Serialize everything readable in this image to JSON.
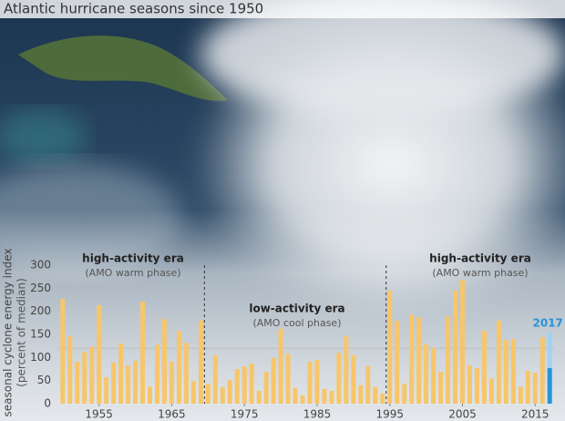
{
  "chart_data": {
    "type": "bar",
    "title": "Atlantic hurricane seasons since 1950",
    "y_label": "seasonal cyclone energy index",
    "y_sublabel": "(percent of median)",
    "x": [
      1950,
      1951,
      1952,
      1953,
      1954,
      1955,
      1956,
      1957,
      1958,
      1959,
      1960,
      1961,
      1962,
      1963,
      1964,
      1965,
      1966,
      1967,
      1968,
      1969,
      1970,
      1971,
      1972,
      1973,
      1974,
      1975,
      1976,
      1977,
      1978,
      1979,
      1980,
      1981,
      1982,
      1983,
      1984,
      1985,
      1986,
      1987,
      1988,
      1989,
      1990,
      1991,
      1992,
      1993,
      1994,
      1995,
      1996,
      1997,
      1998,
      1999,
      2000,
      2001,
      2002,
      2003,
      2004,
      2005,
      2006,
      2007,
      2008,
      2009,
      2010,
      2011,
      2012,
      2013,
      2014,
      2015,
      2016
    ],
    "values": [
      227,
      146,
      91,
      112,
      124,
      213,
      57,
      89,
      130,
      83,
      93,
      221,
      37,
      128,
      183,
      91,
      158,
      132,
      49,
      180,
      43,
      105,
      36,
      51,
      75,
      81,
      87,
      28,
      69,
      99,
      162,
      108,
      34,
      18,
      91,
      95,
      32,
      28,
      110,
      146,
      105,
      40,
      81,
      36,
      22,
      245,
      180,
      43,
      193,
      187,
      128,
      121,
      69,
      189,
      245,
      268,
      83,
      77,
      158,
      55,
      180,
      138,
      140,
      37,
      71,
      67,
      144
    ],
    "color": "#f7c66a",
    "highlight": {
      "label": "2017",
      "x": 2017,
      "values": [
        77,
        77
      ],
      "colors": [
        "#2a93d5",
        "#9fd3f2"
      ]
    },
    "xlim": [
      1949.4,
      2017.6
    ],
    "xticks": [
      1955,
      1965,
      1975,
      1985,
      1995,
      2005,
      2015
    ],
    "ylim": [
      0,
      300
    ],
    "yticks": [
      0,
      50,
      100,
      150,
      200,
      250,
      300
    ],
    "reference_line": 120,
    "era_dividers": [
      1969.5,
      1994.5
    ],
    "annotations": [
      {
        "title": "high-activity era",
        "subtitle": "(AMO warm phase)"
      },
      {
        "title": "low-activity era",
        "subtitle": "(AMO cool phase)"
      },
      {
        "title": "high-activity era",
        "subtitle": "(AMO warm phase)"
      }
    ]
  }
}
